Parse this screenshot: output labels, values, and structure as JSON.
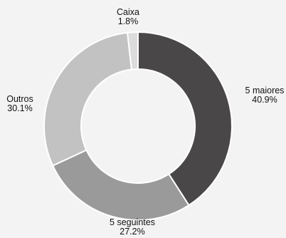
{
  "chart_data": {
    "type": "pie",
    "variant": "donut",
    "categories": [
      "5 maiores",
      "5 seguintes",
      "Outros",
      "Caixa"
    ],
    "values": [
      40.9,
      27.2,
      30.1,
      1.8
    ],
    "value_labels": [
      "40.9%",
      "27.2%",
      "30.1%",
      "1.8%"
    ],
    "colors": [
      "#4a4748",
      "#9a9a9a",
      "#c2c2c2",
      "#dcdcdc"
    ],
    "start_angle_deg": 0,
    "direction": "clockwise",
    "legend": "none",
    "title": ""
  }
}
